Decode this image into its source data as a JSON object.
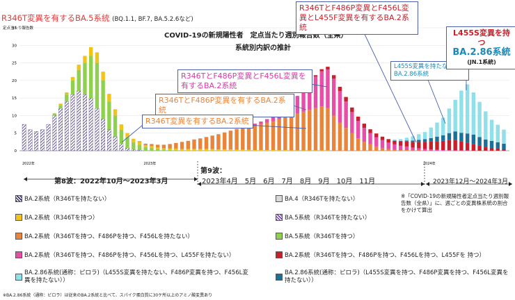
{
  "header": {
    "top_left_label": "R346T変異を有するBA.5系統",
    "top_left_sub": "(BQ.1.1, BF.7, BA.5.2.6など)",
    "title": "COVID-19の新規陽性者　定点当たり週別報告数（全県）",
    "subtitle": "系統別内訳の推計",
    "ylabel": "定点当たり報告数"
  },
  "callouts": {
    "c1": "R346TとF486P変異とF456L変異とL455F変異を有するBA.2系統",
    "c2": "R346TとF486P変異とF456L変異を有するBA.2系統",
    "c3": "R346TとF486P変異を有するBA.2系統",
    "c4": "R346T変異を有するBA.2系統",
    "c5": "L455S変異を持たないBA.2.86系統",
    "c6_l1": "L455S変異を持つ",
    "c6_l2": "BA.2.86系統",
    "c6_l3": "(JN.1系統)"
  },
  "waves": {
    "wave8": "第8波：2022年10月〜2023年3月",
    "wave9": "第9波：",
    "wave9_months": "2023年4月　5月　6月　7月　8月　9月　10月　11月",
    "wave10": "2023年12月〜2024年3月"
  },
  "legend": [
    {
      "label": "BA.2系統（R346Tを持たない）",
      "color": "hatch"
    },
    {
      "label": "BA.2系統（R346Tを持つ）",
      "color": "#f2c318"
    },
    {
      "label": "BA.2系統（R346Tを持つ、F486Pを持つ、F456Lを持たない）",
      "color": "#e8853a"
    },
    {
      "label": "BA.2系統（R346Tを持つ、F486Pを持つ、F456Lを持つ、L455Fを持たない）",
      "color": "#e84da8"
    },
    {
      "label": "BA.2.86系統(通称：ピロラ)（L455S変異を持たない、F486P変異を持つ、F456L変異を持たない））",
      "color": "#8fe0e8"
    },
    {
      "label": "BA.4（R346Tを持たない）",
      "color": "#d8d8d8"
    },
    {
      "label": "BA.5系統（R346Tを持たない）",
      "color": "hatch2"
    },
    {
      "label": "BA.5系統（R346Tを持つ）",
      "color": "#8fd14f"
    },
    {
      "label": "BA.2系統（R346Tを持つ、F486Pを持つ、F456Lを持つ、L455Fを 持つ）",
      "color": "#c8202a"
    },
    {
      "label": "BA.2.86系統(通称：ピロラ)（L455S変異を持つ、F486P変異を持つ、F456L変異を持たない））",
      "color": "#1c6f98"
    }
  ],
  "note": "※「COVID-19の新規陽性者定点当たり週別報告数（全県）」に、週ごとの変異株系統の割合をかけて算出",
  "footnote": "※BA.2.86系統（通称：ピロラ）は従来のBA.2系統と比べて、スパイク蛋白質に30ケ所以上のアミノ酸変異あり",
  "chart_data": {
    "type": "bar",
    "stacked": true,
    "ylim": [
      0,
      35
    ],
    "yticks": [
      0,
      5,
      10,
      15,
      20,
      25,
      30,
      35
    ],
    "ylabel": "定点当たり報告数",
    "year_labels": [
      "2022年",
      "2023年",
      "2024年"
    ],
    "series": [
      {
        "name": "BA.5系統（R346Tを持たない）",
        "color": "#3b2a6e",
        "hatch": true,
        "values": [
          7.5,
          6,
          5.5,
          6,
          7.5,
          10,
          12,
          14,
          16,
          17,
          16,
          15,
          12,
          9,
          6,
          4,
          2,
          0.8,
          0.4,
          0.2,
          0,
          0,
          0,
          0,
          0,
          0,
          0,
          0,
          0,
          0,
          0,
          0,
          0,
          0,
          0,
          0,
          0,
          0,
          0,
          0,
          0,
          0,
          0,
          0,
          0,
          0,
          0,
          0,
          0,
          0,
          0,
          0,
          0,
          0,
          0,
          0,
          0,
          0,
          0,
          0,
          0,
          0,
          0,
          0,
          0,
          0,
          0,
          0,
          0,
          0,
          0,
          0,
          0,
          0,
          0,
          0,
          0,
          0,
          0,
          0
        ]
      },
      {
        "name": "BA.5系統（R346Tを持つ）",
        "color": "#8fd14f",
        "values": [
          0,
          0,
          0,
          0,
          0,
          0.5,
          1,
          2,
          4,
          6,
          9,
          12,
          13,
          11,
          8,
          6,
          4,
          3,
          2,
          1.5,
          1,
          0.8,
          0.5,
          0.3,
          0.2,
          0.1,
          0,
          0,
          0,
          0,
          0,
          0,
          0,
          0,
          0,
          0,
          0,
          0,
          0,
          0,
          0,
          0,
          0,
          0,
          0,
          0,
          0,
          0,
          0,
          0,
          0,
          0,
          0,
          0,
          0,
          0,
          0,
          0,
          0,
          0,
          0,
          0,
          0,
          0,
          0,
          0,
          0,
          0,
          0,
          0,
          0,
          0,
          0,
          0,
          0,
          0,
          0,
          0,
          0,
          0
        ]
      },
      {
        "name": "BA.2系統（R346Tを持つ）",
        "color": "#f2c318",
        "values": [
          0,
          0,
          0,
          0,
          0,
          0.2,
          0.4,
          0.6,
          1,
          1.5,
          2,
          2.5,
          3,
          2.5,
          2.2,
          1.8,
          1.5,
          1.2,
          1,
          0.8,
          0.6,
          0.5,
          0.4,
          0.4,
          0.4,
          0.5,
          0.5,
          0.5,
          0.5,
          0.5,
          0.5,
          0.5,
          0.4,
          0.4,
          0.4,
          0.3,
          0.3,
          0.3,
          0.2,
          0.2,
          0.2,
          0.2,
          0.2,
          0.2,
          0.1,
          0.1,
          0.1,
          0.1,
          0.1,
          0.1,
          0.1,
          0,
          0,
          0,
          0,
          0,
          0,
          0,
          0,
          0,
          0,
          0,
          0,
          0,
          0,
          0,
          0,
          0,
          0,
          0,
          0,
          0,
          0,
          0,
          0,
          0,
          0,
          0,
          0,
          0
        ]
      },
      {
        "name": "BA.2系統（R346Tを持つ、F486Pを持つ、F456Lを持たない）",
        "color": "#e8853a",
        "values": [
          0,
          0,
          0,
          0,
          0,
          0,
          0,
          0,
          0,
          0,
          0,
          0,
          0,
          0,
          0,
          0,
          0,
          0,
          0,
          0.2,
          0.4,
          0.6,
          0.8,
          1,
          1.3,
          1.6,
          2,
          2.3,
          2.7,
          3,
          3.4,
          3.8,
          4.3,
          4.8,
          5.3,
          5.8,
          6.2,
          6.6,
          7,
          7.4,
          7.8,
          8.2,
          8.8,
          9.5,
          10,
          10.5,
          11,
          11.5,
          12,
          12.5,
          12,
          10,
          8,
          6.5,
          5,
          3.5,
          2.5,
          1.8,
          1.2,
          0.8,
          0.5,
          0.3,
          0.2,
          0.2,
          0.1,
          0.1,
          0,
          0,
          0,
          0,
          0,
          0,
          0,
          0,
          0,
          0,
          0,
          0,
          0,
          0
        ]
      },
      {
        "name": "BA.2系統（R346Tを持つ、F486Pを持つ、F456Lを持つ、L455Fを持たない）",
        "color": "#e84da8",
        "values": [
          0,
          0,
          0,
          0,
          0,
          0,
          0,
          0,
          0,
          0,
          0,
          0,
          0,
          0,
          0,
          0,
          0,
          0,
          0,
          0,
          0,
          0,
          0,
          0,
          0,
          0,
          0,
          0,
          0,
          0,
          0,
          0,
          0,
          0,
          0,
          0.1,
          0.2,
          0.3,
          0.5,
          0.7,
          1,
          1.4,
          2,
          3,
          4,
          5,
          6,
          7.5,
          9,
          10,
          11,
          10.5,
          9,
          7.5,
          6,
          5,
          4,
          3.2,
          2.6,
          2.2,
          1.8,
          1.5,
          1.2,
          1,
          0.8,
          0.6,
          0.5,
          0.4,
          0.3,
          0.2,
          0.2,
          0.1,
          0.1,
          0.1,
          0,
          0,
          0,
          0,
          0,
          0
        ]
      },
      {
        "name": "BA.2系統（R346Tを持つ、F486Pを持つ、F456Lを持つ、L455Fを 持つ）",
        "color": "#c8202a",
        "values": [
          0,
          0,
          0,
          0,
          0,
          0,
          0,
          0,
          0,
          0,
          0,
          0,
          0,
          0,
          0,
          0,
          0,
          0,
          0,
          0,
          0,
          0,
          0,
          0,
          0,
          0,
          0,
          0,
          0,
          0,
          0,
          0,
          0,
          0,
          0,
          0,
          0,
          0,
          0,
          0,
          0,
          0,
          0,
          0,
          0,
          0,
          0.1,
          0.2,
          0.4,
          0.6,
          0.8,
          1,
          1.2,
          1.3,
          1.3,
          1.2,
          1.2,
          1.1,
          1.1,
          1,
          1,
          1,
          1.2,
          1.4,
          1.6,
          1.8,
          2,
          2.2,
          2.4,
          2.6,
          2.8,
          3,
          2.6,
          2.2,
          1.8,
          1.4,
          1,
          0.8,
          0.6,
          0.4
        ]
      },
      {
        "name": "BA.2.86系統(通称：ピロラ)（L455S変異を持つ）",
        "color": "#1c6f98",
        "values": [
          0,
          0,
          0,
          0,
          0,
          0,
          0,
          0,
          0,
          0,
          0,
          0,
          0,
          0,
          0,
          0,
          0,
          0,
          0,
          0,
          0,
          0,
          0,
          0,
          0,
          0,
          0,
          0,
          0,
          0,
          0,
          0,
          0,
          0,
          0,
          0,
          0,
          0,
          0,
          0,
          0,
          0,
          0,
          0,
          0,
          0,
          0,
          0,
          0,
          0,
          0,
          0,
          0,
          0,
          0,
          0,
          0,
          0,
          0,
          0,
          0,
          0.1,
          0.2,
          0.3,
          0.4,
          0.6,
          0.8,
          1,
          1.3,
          1.6,
          2,
          2.4,
          2.4,
          2.6,
          2.8,
          2.5,
          2.2,
          2,
          1.8,
          1.6
        ]
      },
      {
        "name": "BA.2.86系統(通称：ピロラ)（L455S変異を持たない）",
        "color": "#8fe0e8",
        "values": [
          0,
          0,
          0,
          0,
          0,
          0,
          0,
          0,
          0,
          0,
          0,
          0,
          0,
          0,
          0,
          0,
          0,
          0,
          0,
          0,
          0,
          0,
          0,
          0,
          0,
          0,
          0,
          0,
          0,
          0,
          0,
          0,
          0,
          0,
          0,
          0,
          0,
          0,
          0,
          0,
          0,
          0,
          0,
          0,
          0,
          0,
          0,
          0,
          0,
          0,
          0,
          0,
          0,
          0,
          0,
          0,
          0,
          0,
          0,
          0,
          0,
          0.3,
          0.5,
          0.8,
          1.2,
          1.6,
          2,
          3,
          4,
          5,
          7,
          9,
          12,
          14,
          12,
          10,
          8,
          6,
          5,
          4
        ]
      }
    ]
  }
}
